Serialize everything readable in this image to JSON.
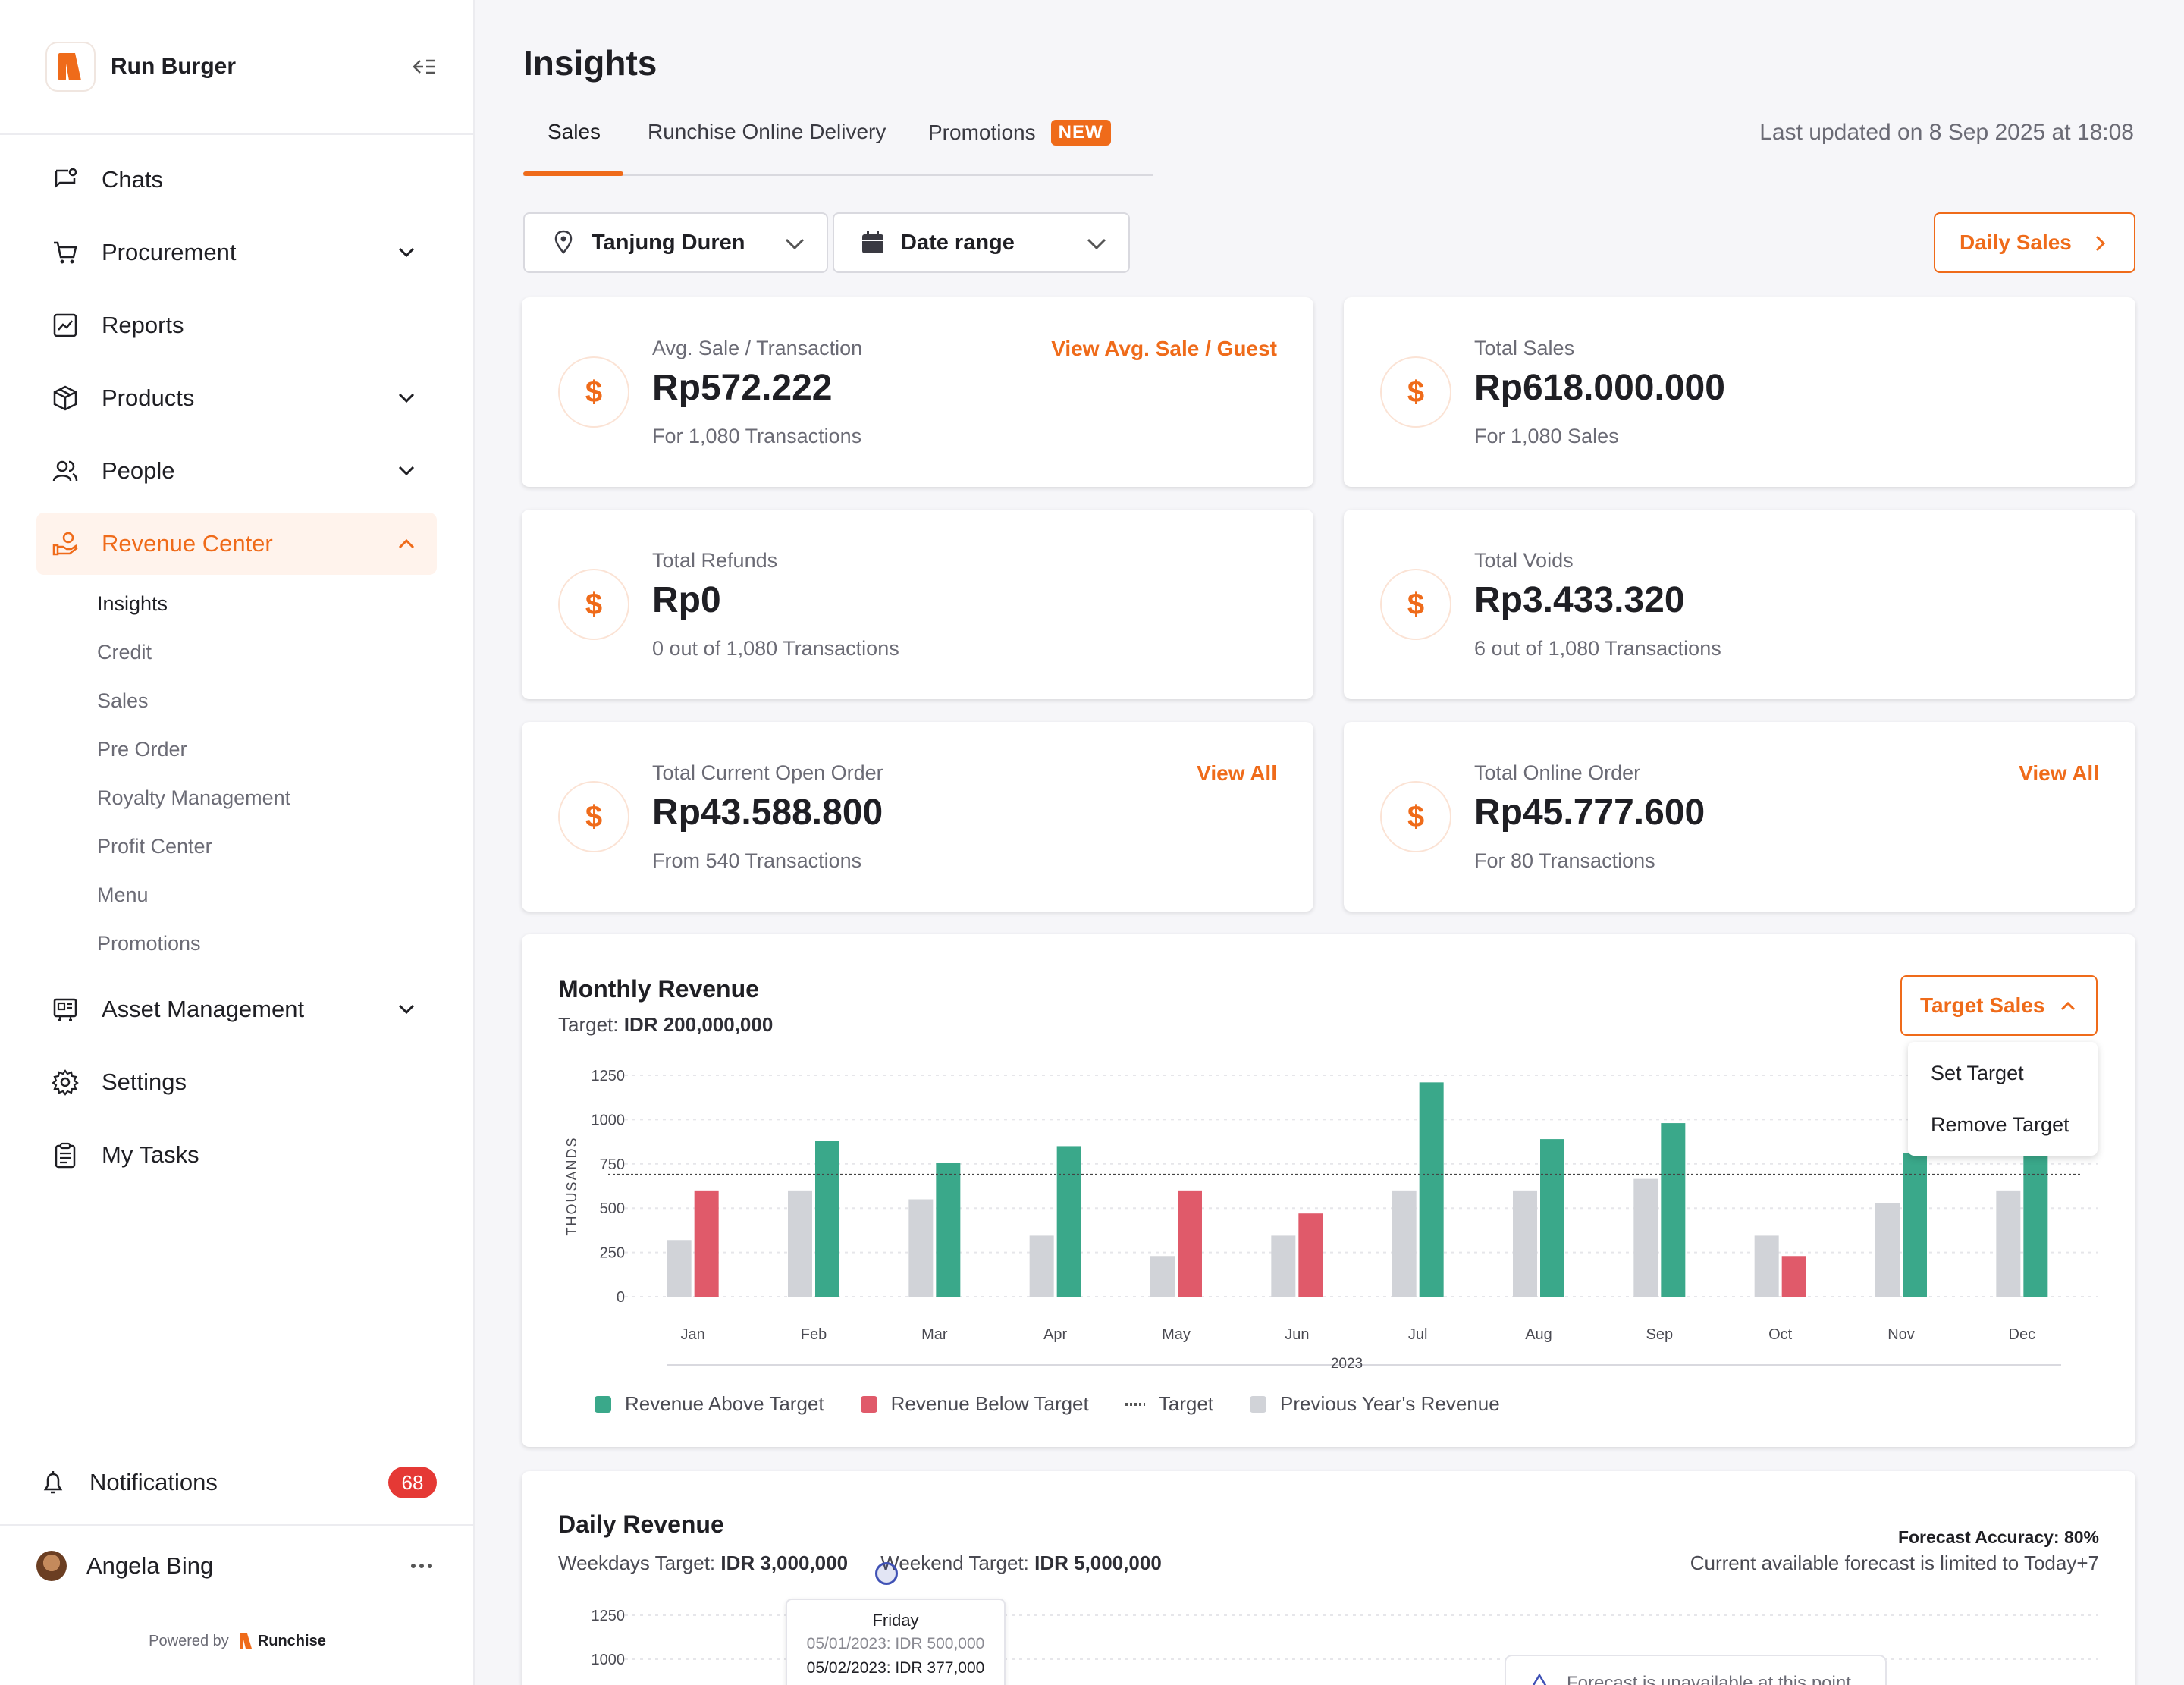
{
  "brand": {
    "name": "Run Burger",
    "accent": "#ef6b1a"
  },
  "sidebar": {
    "items": [
      {
        "label": "Chats",
        "icon": "chat-icon"
      },
      {
        "label": "Procurement",
        "icon": "cart-icon"
      },
      {
        "label": "Reports",
        "icon": "chart-icon"
      },
      {
        "label": "Products",
        "icon": "box-icon"
      },
      {
        "label": "People",
        "icon": "people-icon"
      },
      {
        "label": "Revenue Center",
        "icon": "revenue-icon"
      },
      {
        "label": "Asset Management",
        "icon": "asset-icon"
      },
      {
        "label": "Settings",
        "icon": "gear-icon"
      },
      {
        "label": "My Tasks",
        "icon": "clipboard-icon"
      }
    ],
    "revenue_sub": [
      "Insights",
      "Credit",
      "Sales",
      "Pre Order",
      "Royalty Management",
      "Profit Center",
      "Menu",
      "Promotions"
    ],
    "notifications": {
      "label": "Notifications",
      "count": "68"
    },
    "user": {
      "name": "Angela Bing"
    },
    "powered_by": "Powered by",
    "powered_brand": "Runchise"
  },
  "header": {
    "title": "Insights",
    "tabs": [
      "Sales",
      "Runchise Online Delivery",
      "Promotions"
    ],
    "new_badge": "NEW",
    "last_updated": "Last updated on 8 Sep 2025 at 18:08"
  },
  "filters": {
    "location": "Tanjung Duren",
    "date": "Date range",
    "daily_sales": "Daily Sales"
  },
  "cards": [
    {
      "label": "Avg. Sale / Transaction",
      "value": "Rp572.222",
      "sub": "For 1,080 Transactions",
      "link": "View Avg. Sale / Guest"
    },
    {
      "label": "Total Sales",
      "value": "Rp618.000.000",
      "sub": "For 1,080 Sales",
      "link": ""
    },
    {
      "label": "Total Refunds",
      "value": "Rp0",
      "sub": "0 out of 1,080 Transactions",
      "link": ""
    },
    {
      "label": "Total Voids",
      "value": "Rp3.433.320",
      "sub": "6 out of 1,080 Transactions",
      "link": ""
    },
    {
      "label": "Total Current Open Order",
      "value": "Rp43.588.800",
      "sub": "From 540 Transactions",
      "link": "View All"
    },
    {
      "label": "Total Online Order",
      "value": "Rp45.777.600",
      "sub": "For 80 Transactions",
      "link": "View All"
    }
  ],
  "monthly": {
    "title": "Monthly Revenue",
    "target_label": "Target: ",
    "target_value": "IDR 200,000,000",
    "target_button": "Target Sales",
    "menu": [
      "Set Target",
      "Remove Target"
    ],
    "legend": [
      "Revenue Above Target",
      "Revenue Below Target",
      "Target",
      "Previous Year's Revenue"
    ]
  },
  "daily": {
    "title": "Daily Revenue",
    "weekdays_label": "Weekdays Target: ",
    "weekdays_value": "IDR 3,000,000",
    "weekend_label": "Weekend Target: ",
    "weekend_value": "IDR 5,000,000",
    "forecast_accuracy": "Forecast Accuracy: 80%",
    "forecast_limit": "Current available forecast is limited to Today+7",
    "tooltip_day": "Friday",
    "tooltip_prev": "05/01/2023: IDR 500,000",
    "tooltip_curr": "05/02/2023: IDR 377,000",
    "forecast_note": "Forecast is unavailable at this point"
  },
  "chart_data": [
    {
      "type": "bar",
      "title": "Monthly Revenue",
      "ylabel": "THOUSANDS",
      "xlabel": "2023",
      "categories": [
        "Jan",
        "Feb",
        "Mar",
        "Apr",
        "May",
        "Jun",
        "Jul",
        "Aug",
        "Sep",
        "Oct",
        "Nov",
        "Dec"
      ],
      "yticks": [
        0,
        250,
        500,
        750,
        1000,
        1250
      ],
      "ylim": [
        0,
        1250
      ],
      "target": 690,
      "series": [
        {
          "name": "Previous Year's Revenue",
          "color": "#d1d3d8",
          "values": [
            320,
            600,
            550,
            345,
            230,
            345,
            600,
            600,
            665,
            345,
            530,
            600
          ]
        },
        {
          "name": "Revenue",
          "values": [
            600,
            880,
            755,
            850,
            600,
            470,
            1210,
            890,
            980,
            230,
            810,
            850
          ],
          "colors": [
            "#e05a6a",
            "#3aa88a",
            "#3aa88a",
            "#3aa88a",
            "#e05a6a",
            "#e05a6a",
            "#3aa88a",
            "#3aa88a",
            "#3aa88a",
            "#e05a6a",
            "#3aa88a",
            "#3aa88a"
          ]
        }
      ],
      "colors": {
        "above": "#3aa88a",
        "below": "#e05a6a",
        "previous": "#d1d3d8"
      }
    },
    {
      "type": "bar",
      "title": "Daily Revenue",
      "yticks": [
        1000,
        1250
      ]
    }
  ]
}
